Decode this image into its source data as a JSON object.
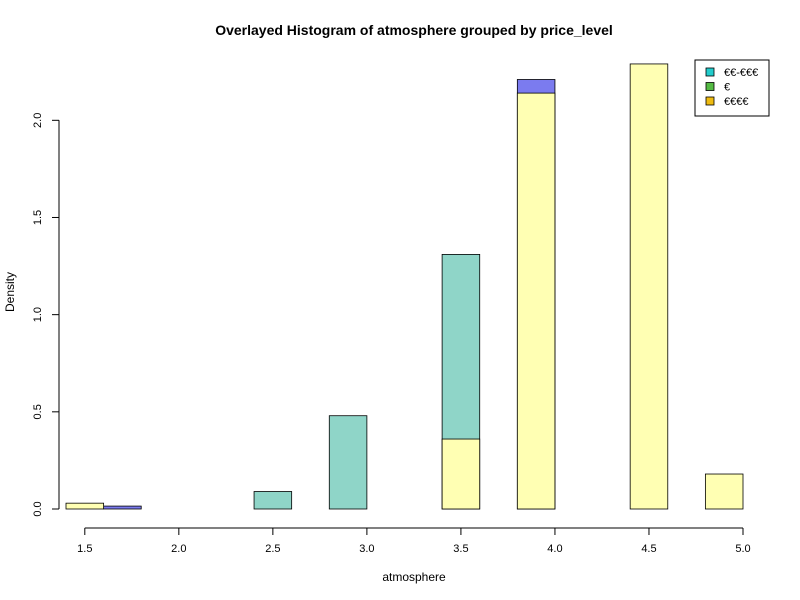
{
  "chart_data": {
    "type": "bar",
    "subtype": "overlaid-histogram",
    "title": "Overlayed Histogram of atmosphere grouped by price_level",
    "xlabel": "atmosphere",
    "ylabel": "Density",
    "xlim": [
      1.4,
      5.0
    ],
    "ylim": [
      0,
      2.3
    ],
    "xticks": [
      "1.5",
      "2.0",
      "2.5",
      "3.0",
      "3.5",
      "4.0",
      "4.5",
      "5.0"
    ],
    "yticks": [
      "0.0",
      "0.5",
      "1.0",
      "1.5",
      "2.0"
    ],
    "bin_edges": [
      1.4,
      1.6,
      1.8,
      2.0,
      2.2,
      2.4,
      2.6,
      2.8,
      3.0,
      3.2,
      3.4,
      3.6,
      3.8,
      4.0,
      4.2,
      4.4,
      4.6,
      4.8,
      5.0
    ],
    "legend_position": "top-right",
    "grid": false,
    "series": [
      {
        "name": "€€-€€€",
        "legend_color": "#22cccc",
        "fill": "#8fd5c8",
        "values": [
          0,
          0,
          0,
          0,
          0,
          0.09,
          0,
          0.48,
          0,
          0,
          1.31,
          0,
          0,
          0,
          0,
          0,
          0,
          0
        ]
      },
      {
        "name": "€",
        "legend_color": "#55bb44",
        "fill": "#7b7bef",
        "values": [
          0,
          0.015,
          0,
          0,
          0,
          0,
          0,
          0,
          0,
          0,
          0,
          0,
          2.21,
          0,
          0,
          0,
          0,
          0
        ]
      },
      {
        "name": "€€€€",
        "legend_color": "#eebb11",
        "fill": "#ffffb3",
        "values": [
          0.03,
          0,
          0,
          0,
          0,
          0,
          0,
          0,
          0,
          0,
          0.36,
          0,
          2.14,
          0,
          0,
          2.29,
          0,
          0.18
        ]
      }
    ]
  }
}
